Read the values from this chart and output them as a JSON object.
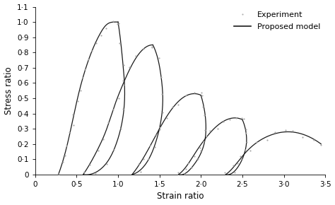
{
  "xlabel": "Strain ratio",
  "ylabel": "Stress ratio",
  "xlim": [
    0,
    3.5
  ],
  "ylim": [
    0,
    1.1
  ],
  "xticks": [
    0,
    0.5,
    1.0,
    1.5,
    2.0,
    2.5,
    3.0,
    3.5
  ],
  "yticks": [
    0,
    0.1,
    0.2,
    0.3,
    0.4,
    0.5,
    0.6,
    0.7,
    0.8,
    0.9,
    1.0,
    1.1
  ],
  "xtick_labels": [
    "0",
    "0·5",
    "1·0",
    "1·5",
    "2·0",
    "2·5",
    "3·0",
    "3·5"
  ],
  "ytick_labels": [
    "0",
    "0·1",
    "0·2",
    "0·3",
    "0·4",
    "0·5",
    "0·6",
    "0·7",
    "0·8",
    "0·9",
    "1·0",
    "1·1"
  ],
  "line_color": "#1a1a1a",
  "dot_color": "#aaaaaa",
  "legend_entries": [
    "Experiment",
    "Proposed model"
  ],
  "background_color": "#ffffff",
  "figsize": [
    4.74,
    2.9
  ],
  "dpi": 100,
  "initial_load": [
    [
      0.28,
      0.0
    ],
    [
      0.38,
      0.18
    ],
    [
      0.52,
      0.52
    ],
    [
      0.65,
      0.76
    ],
    [
      0.78,
      0.92
    ],
    [
      0.88,
      0.99
    ],
    [
      0.95,
      1.0
    ],
    [
      1.0,
      1.0
    ]
  ],
  "loops": [
    {
      "unload": [
        [
          1.0,
          1.0
        ],
        [
          1.03,
          0.88
        ],
        [
          1.06,
          0.72
        ],
        [
          1.08,
          0.56
        ],
        [
          1.06,
          0.38
        ],
        [
          0.99,
          0.22
        ],
        [
          0.88,
          0.09
        ],
        [
          0.75,
          0.02
        ],
        [
          0.58,
          0.0
        ]
      ],
      "reload": [
        [
          0.58,
          0.0
        ],
        [
          0.65,
          0.06
        ],
        [
          0.75,
          0.16
        ],
        [
          0.85,
          0.28
        ],
        [
          0.95,
          0.44
        ],
        [
          1.05,
          0.58
        ],
        [
          1.15,
          0.7
        ],
        [
          1.25,
          0.79
        ],
        [
          1.35,
          0.84
        ],
        [
          1.42,
          0.85
        ]
      ]
    },
    {
      "unload": [
        [
          1.42,
          0.85
        ],
        [
          1.48,
          0.76
        ],
        [
          1.52,
          0.64
        ],
        [
          1.54,
          0.5
        ],
        [
          1.52,
          0.36
        ],
        [
          1.46,
          0.22
        ],
        [
          1.37,
          0.1
        ],
        [
          1.27,
          0.03
        ],
        [
          1.17,
          0.0
        ]
      ],
      "reload": [
        [
          1.17,
          0.0
        ],
        [
          1.25,
          0.06
        ],
        [
          1.36,
          0.16
        ],
        [
          1.5,
          0.3
        ],
        [
          1.65,
          0.43
        ],
        [
          1.8,
          0.51
        ],
        [
          1.92,
          0.53
        ],
        [
          2.0,
          0.52
        ]
      ]
    },
    {
      "unload": [
        [
          2.0,
          0.52
        ],
        [
          2.04,
          0.43
        ],
        [
          2.06,
          0.33
        ],
        [
          2.05,
          0.23
        ],
        [
          2.0,
          0.14
        ],
        [
          1.91,
          0.06
        ],
        [
          1.82,
          0.01
        ],
        [
          1.73,
          0.0
        ]
      ],
      "reload": [
        [
          1.73,
          0.0
        ],
        [
          1.82,
          0.05
        ],
        [
          1.93,
          0.14
        ],
        [
          2.06,
          0.24
        ],
        [
          2.22,
          0.33
        ],
        [
          2.38,
          0.37
        ],
        [
          2.5,
          0.36
        ]
      ]
    },
    {
      "unload": [
        [
          2.5,
          0.36
        ],
        [
          2.54,
          0.29
        ],
        [
          2.55,
          0.21
        ],
        [
          2.52,
          0.13
        ],
        [
          2.46,
          0.06
        ],
        [
          2.38,
          0.01
        ],
        [
          2.3,
          0.0
        ]
      ],
      "reload": [
        [
          2.3,
          0.0
        ],
        [
          2.38,
          0.04
        ],
        [
          2.5,
          0.12
        ],
        [
          2.65,
          0.2
        ],
        [
          2.85,
          0.26
        ],
        [
          3.05,
          0.28
        ],
        [
          3.25,
          0.26
        ],
        [
          3.45,
          0.2
        ]
      ]
    }
  ],
  "dot_counts": {
    "initial": 18,
    "unload": 10,
    "reload": 12
  }
}
